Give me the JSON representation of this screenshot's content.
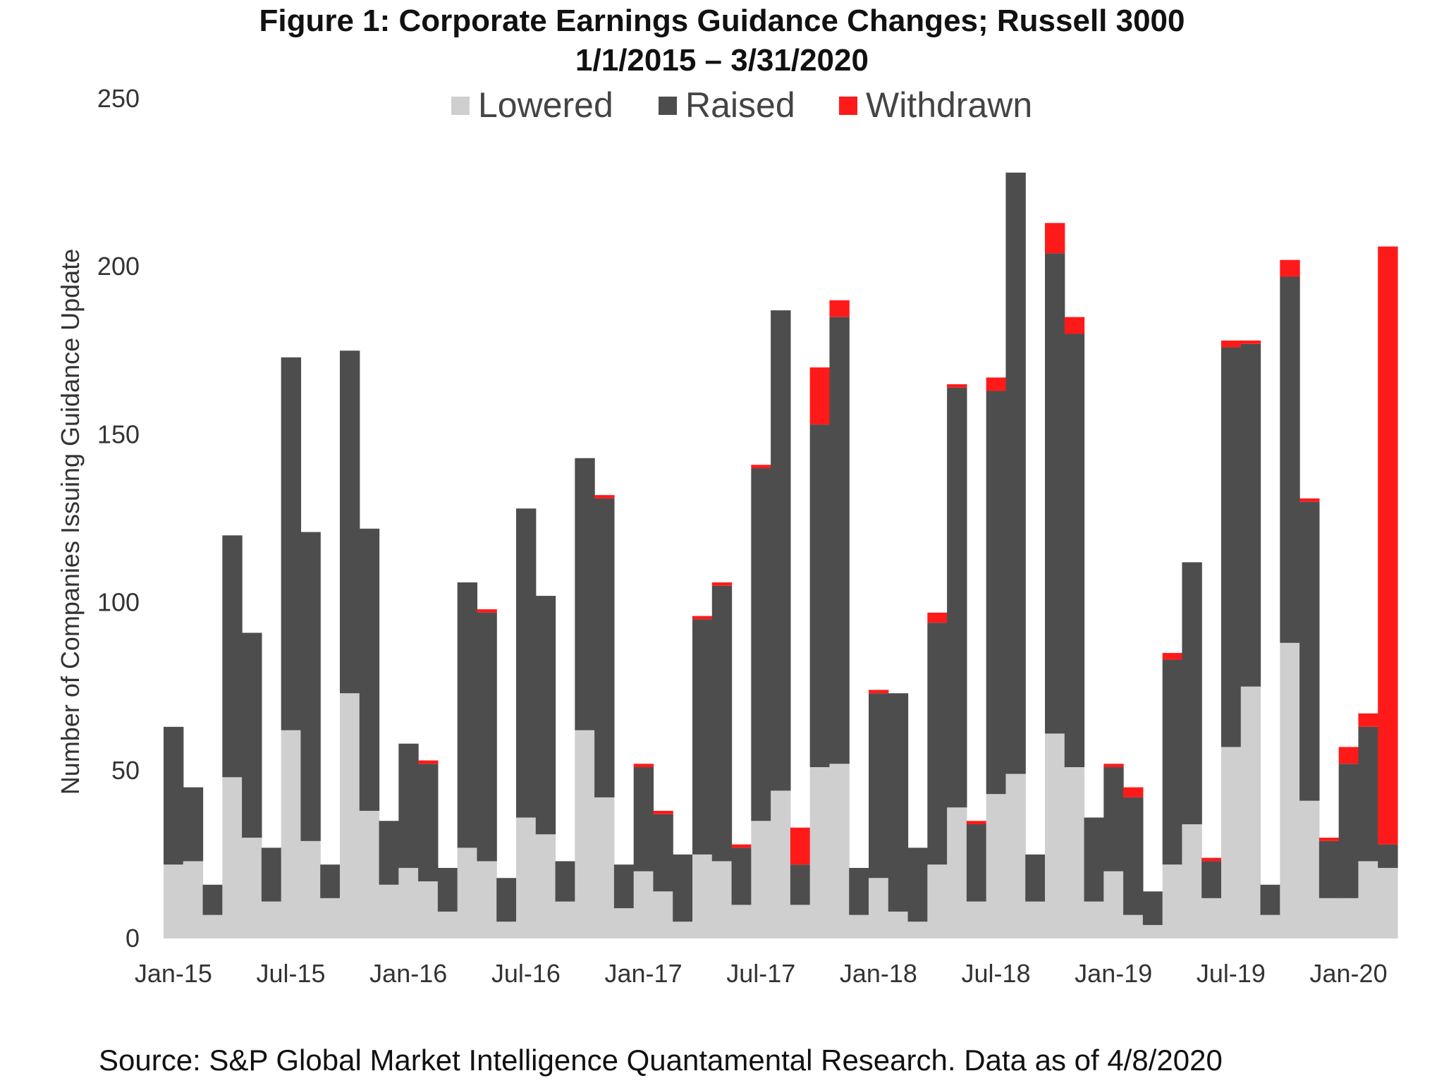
{
  "chart_data": {
    "type": "bar",
    "stacked": true,
    "title": "Figure 1: Corporate Earnings Guidance Changes; Russell 3000",
    "subtitle": "1/1/2015 – 3/31/2020",
    "xlabel": "",
    "ylabel": "Number of Companies Issuing Guidance Update",
    "ylim": [
      0,
      250
    ],
    "yticks": [
      0,
      50,
      100,
      150,
      200,
      250
    ],
    "grid": false,
    "legend_position": "top",
    "source": "Source: S&P Global Market Intelligence Quantamental Research. Data as of 4/8/2020",
    "x_tick_labels": [
      "Jan-15",
      "Jul-15",
      "Jan-16",
      "Jul-16",
      "Jan-17",
      "Jul-17",
      "Jan-18",
      "Jul-18",
      "Jan-19",
      "Jul-19",
      "Jan-20"
    ],
    "x_tick_every": 6,
    "series": [
      {
        "name": "Lowered",
        "color": "#cfcfcf",
        "values": [
          22,
          23,
          7,
          48,
          30,
          11,
          62,
          29,
          12,
          73,
          38,
          16,
          21,
          17,
          8,
          27,
          23,
          5,
          36,
          31,
          11,
          62,
          42,
          9,
          20,
          14,
          5,
          25,
          23,
          10,
          35,
          44,
          10,
          51,
          52,
          7,
          18,
          8,
          5,
          22,
          39,
          11,
          43,
          49,
          11,
          61,
          51,
          11,
          20,
          7,
          4,
          22,
          34,
          12,
          57,
          75,
          7,
          88,
          41,
          12,
          12,
          23,
          21
        ]
      },
      {
        "name": "Raised",
        "color": "#4d4d4d",
        "values": [
          41,
          22,
          9,
          72,
          61,
          16,
          111,
          92,
          10,
          102,
          84,
          19,
          37,
          35,
          13,
          79,
          74,
          13,
          92,
          71,
          12,
          81,
          89,
          13,
          31,
          23,
          20,
          70,
          82,
          17,
          105,
          143,
          12,
          102,
          133,
          14,
          55,
          65,
          22,
          72,
          125,
          23,
          120,
          179,
          14,
          143,
          129,
          25,
          31,
          35,
          10,
          61,
          78,
          11,
          119,
          102,
          9,
          109,
          89,
          17,
          40,
          40,
          7
        ]
      },
      {
        "name": "Withdrawn",
        "color": "#ff1a1a",
        "values": [
          0,
          0,
          0,
          0,
          0,
          0,
          0,
          0,
          0,
          0,
          0,
          0,
          0,
          1,
          0,
          0,
          1,
          0,
          0,
          0,
          0,
          0,
          1,
          0,
          1,
          1,
          0,
          1,
          1,
          1,
          1,
          0,
          11,
          17,
          5,
          0,
          1,
          0,
          0,
          3,
          1,
          1,
          4,
          0,
          0,
          9,
          5,
          0,
          1,
          3,
          0,
          2,
          0,
          1,
          2,
          1,
          0,
          5,
          1,
          1,
          5,
          4,
          178
        ]
      }
    ]
  }
}
